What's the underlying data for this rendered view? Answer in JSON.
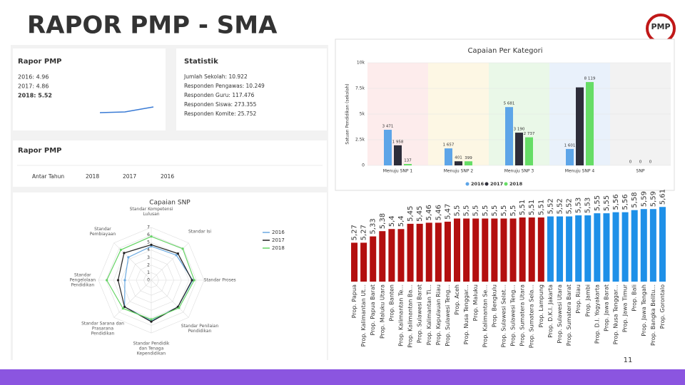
{
  "slide": {
    "title": "RAPOR PMP - SMA",
    "logo": "PMP",
    "page_number": "11"
  },
  "dashboard": {
    "rapor": {
      "title": "Rapor PMP",
      "lines": [
        "2016: 4.96",
        "2017: 4.86",
        "2018: 5.52"
      ]
    },
    "statistik": {
      "title": "Statistik",
      "lines": [
        "Jumlah Sekolah: 10.922",
        "Responden Pengawas: 10.249",
        "Responden Guru: 117.476",
        "Responden Siswa: 273.355",
        "Responden Komite: 25.752"
      ]
    },
    "rapor_tabs": {
      "title": "Rapor PMP",
      "tabs": [
        "Antar Tahun",
        "2018",
        "2017",
        "2016"
      ]
    }
  },
  "chart_data": [
    {
      "type": "radar",
      "title": "Capaian SNP",
      "categories": [
        "Standar Kompetensi Lulusan",
        "Standar Isi",
        "Standar Proses",
        "Standar Penilaian Pendidikan",
        "Standar Pendidik dan Tenaga Kependidikan",
        "Standar Sarana dan Prasarana Pendidikan",
        "Standar Pengelolaan Pendidikan",
        "Standar Pembiayaan"
      ],
      "series": [
        {
          "name": "2016",
          "color": "#6aa9e0",
          "values": [
            4.5,
            4.7,
            5.5,
            5.0,
            5.4,
            5.0,
            3.5,
            4.3
          ]
        },
        {
          "name": "2017",
          "color": "#222222",
          "values": [
            4.7,
            5.0,
            5.4,
            5.0,
            5.5,
            5.0,
            4.4,
            5.1
          ]
        },
        {
          "name": "2018",
          "color": "#66d466",
          "values": [
            5.8,
            5.9,
            5.7,
            5.2,
            5.2,
            5.3,
            5.9,
            5.7
          ]
        }
      ],
      "rlim": [
        0,
        7
      ],
      "rticks": [
        0,
        1,
        2,
        3,
        4,
        5,
        6,
        7
      ]
    },
    {
      "type": "grouped_bar",
      "title": "Capaian Per Kategori",
      "y_label": "Satuan Pendidikan (sekolah)",
      "categories": [
        "Menuju SNP 1",
        "Menuju SNP 2",
        "Menuju SNP 3",
        "Menuju SNP 4",
        "SNP"
      ],
      "series": [
        {
          "name": "2016",
          "color": "#5da5e8",
          "values": [
            3471,
            1657,
            5681,
            1601,
            0
          ],
          "value_labels": [
            "3 471",
            "1 657",
            "5 681",
            "1 601",
            "0"
          ]
        },
        {
          "name": "2017",
          "color": "#2d2d3a",
          "values": [
            1958,
            401,
            3190,
            7600,
            0
          ],
          "value_labels": [
            "1 958",
            "401",
            "3 190",
            null,
            "0"
          ]
        },
        {
          "name": "2018",
          "color": "#66dd66",
          "values": [
            137,
            399,
            2737,
            8119,
            0
          ],
          "value_labels": [
            "137",
            "399",
            "2 737",
            "8 119",
            "0"
          ]
        }
      ],
      "ylim": [
        0,
        10000
      ],
      "yticks": [
        0,
        {
          "value": 2500,
          "label": "2.5k"
        },
        {
          "value": 5000,
          "label": "5k"
        },
        {
          "value": 7500,
          "label": "7.5k"
        },
        {
          "value": 10000,
          "label": "10k"
        }
      ]
    },
    {
      "type": "bar",
      "categories": [
        "Prop. Papua",
        "Prop. Kalimantan Ut...",
        "Prop. Papua Barat",
        "Prop. Maluku Utara",
        "Prop. Banten",
        "Prop. Kalimantan Te...",
        "Prop. Kalimantan Ba...",
        "Prop. Sulawesi Barat",
        "Prop. Kalimantan Ti...",
        "Prop. Kepulauan Riau",
        "Prop. Sulawesi Teng...",
        "Prop. Aceh",
        "Prop. Nusa Tenggar...",
        "Prop. Maluku",
        "Prop. Kalimantan Se...",
        "Prop. Bengkulu",
        "Prop. Sulawesi Selat...",
        "Prop. Sulawesi Teng...",
        "Prop. Sumatera Utara",
        "Prop. Sumatera Sela...",
        "Prop. Lampung",
        "Prop. D.K.I. Jakarta",
        "Prop. Sulawesi Utara",
        "Prop. Sumatera Barat",
        "Prop. Riau",
        "Prop. Jambi",
        "Prop. D.I. Yogyakarta",
        "Prop. Jawa Barat",
        "Prop. Nusa Tenggar...",
        "Prop. Jawa Timur",
        "Prop. Bali",
        "Prop. Jawa Tengah",
        "Prop. Bangka Belitu...",
        "Prop. Gorontalo"
      ],
      "values": [
        5.27,
        5.27,
        5.33,
        5.38,
        5.4,
        5.4,
        5.45,
        5.45,
        5.46,
        5.46,
        5.47,
        5.5,
        5.5,
        5.5,
        5.5,
        5.5,
        5.5,
        5.5,
        5.51,
        5.51,
        5.51,
        5.52,
        5.52,
        5.52,
        5.53,
        5.53,
        5.55,
        5.55,
        5.56,
        5.56,
        5.58,
        5.59,
        5.59,
        5.61
      ],
      "value_labels": [
        "5,27",
        "5,27",
        "5,33",
        "5,38",
        "5,4",
        "5,4",
        "5,45",
        "5,45",
        "5,46",
        "5,46",
        "5,47",
        "5,5",
        "5,5",
        "5,5",
        "5,5",
        "5,5",
        "5,5",
        "5,5",
        "5,51",
        "5,51",
        "5,51",
        "5,52",
        "5,52",
        "5,52",
        "5,53",
        "5,53",
        "5,55",
        "5,55",
        "5,56",
        "5,56",
        "5,58",
        "5,59",
        "5,59",
        "5,61"
      ],
      "colors": [
        "#b30f0f",
        "#b30f0f",
        "#b30f0f",
        "#b30f0f",
        "#b30f0f",
        "#b30f0f",
        "#b30f0f",
        "#b30f0f",
        "#b30f0f",
        "#b30f0f",
        "#b30f0f",
        "#b30f0f",
        "#b30f0f",
        "#b30f0f",
        "#b30f0f",
        "#b30f0f",
        "#b30f0f",
        "#b30f0f",
        "#b30f0f",
        "#b30f0f",
        "#b30f0f",
        "#1e90e8",
        "#1e90e8",
        "#1e90e8",
        "#1e90e8",
        "#1e90e8",
        "#1e90e8",
        "#1e90e8",
        "#1e90e8",
        "#1e90e8",
        "#1e90e8",
        "#1e90e8",
        "#1e90e8",
        "#1e90e8"
      ],
      "ylim": [
        4.9,
        5.7
      ]
    }
  ]
}
